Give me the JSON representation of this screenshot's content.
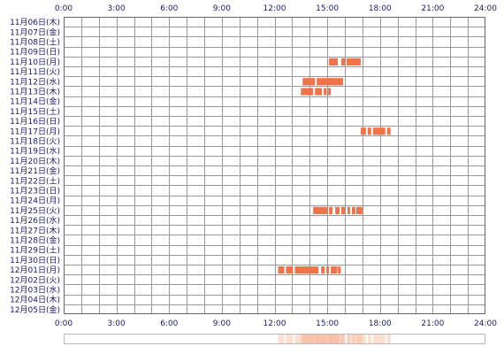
{
  "chart_data": {
    "type": "timeline",
    "x_ticks": [
      "0:00",
      "3:00",
      "6:00",
      "9:00",
      "12:00",
      "15:00",
      "18:00",
      "21:00",
      "24:00"
    ],
    "xlim": [
      0,
      24
    ],
    "grid": true,
    "colors": {
      "bar": "#f0734a",
      "bar_border": "#d8542c",
      "grid": "#999999",
      "frame": "#666666",
      "text": "#1a1a66",
      "summary_fill": "#f9b99a"
    },
    "rows": [
      {
        "label": "11月06日(木)",
        "segments": []
      },
      {
        "label": "11月07日(金)",
        "segments": []
      },
      {
        "label": "11月08日(土)",
        "segments": []
      },
      {
        "label": "11月09日(日)",
        "segments": []
      },
      {
        "label": "11月10日(月)",
        "segments": [
          [
            15.1,
            15.6
          ],
          [
            15.8,
            16.0
          ],
          [
            16.1,
            16.9
          ]
        ]
      },
      {
        "label": "11月11日(火)",
        "segments": []
      },
      {
        "label": "11月12日(水)",
        "segments": [
          [
            13.6,
            14.3
          ],
          [
            14.4,
            15.9
          ]
        ]
      },
      {
        "label": "11月13日(木)",
        "segments": [
          [
            13.5,
            14.2
          ],
          [
            14.3,
            14.7
          ],
          [
            14.8,
            14.95
          ],
          [
            15.05,
            15.2
          ]
        ]
      },
      {
        "label": "11月14日(金)",
        "segments": []
      },
      {
        "label": "11月15日(土)",
        "segments": []
      },
      {
        "label": "11月16日(日)",
        "segments": []
      },
      {
        "label": "11月17日(月)",
        "segments": [
          [
            16.9,
            17.2
          ],
          [
            17.3,
            17.5
          ],
          [
            17.6,
            18.3
          ],
          [
            18.4,
            18.6
          ]
        ]
      },
      {
        "label": "11月18日(火)",
        "segments": []
      },
      {
        "label": "11月19日(水)",
        "segments": []
      },
      {
        "label": "11月20日(木)",
        "segments": []
      },
      {
        "label": "11月21日(金)",
        "segments": []
      },
      {
        "label": "11月22日(土)",
        "segments": []
      },
      {
        "label": "11月23日(日)",
        "segments": []
      },
      {
        "label": "11月24日(月)",
        "segments": []
      },
      {
        "label": "11月25日(火)",
        "segments": [
          [
            14.2,
            15.0
          ],
          [
            15.1,
            15.3
          ],
          [
            15.45,
            15.7
          ],
          [
            15.8,
            16.0
          ],
          [
            16.15,
            16.3
          ],
          [
            16.4,
            16.6
          ],
          [
            16.65,
            17.0
          ]
        ]
      },
      {
        "label": "11月26日(水)",
        "segments": []
      },
      {
        "label": "11月27日(木)",
        "segments": []
      },
      {
        "label": "11月28日(金)",
        "segments": []
      },
      {
        "label": "11月29日(土)",
        "segments": []
      },
      {
        "label": "11月30日(日)",
        "segments": []
      },
      {
        "label": "12月01日(月)",
        "segments": [
          [
            12.2,
            12.55
          ],
          [
            12.65,
            13.05
          ],
          [
            13.15,
            14.5
          ],
          [
            14.65,
            14.85
          ],
          [
            14.95,
            15.1
          ],
          [
            15.2,
            15.55
          ],
          [
            15.6,
            15.75
          ]
        ]
      },
      {
        "label": "12月02日(火)",
        "segments": []
      },
      {
        "label": "12月03日(水)",
        "segments": []
      },
      {
        "label": "12月04日(木)",
        "segments": []
      },
      {
        "label": "12月05日(金)",
        "segments": []
      }
    ]
  }
}
